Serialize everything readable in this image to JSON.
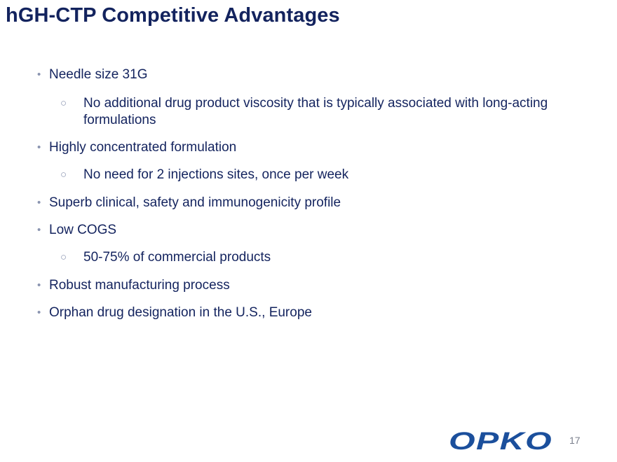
{
  "slide": {
    "title": "hGH-CTP Competitive Advantages",
    "page_number": "17"
  },
  "logo": {
    "text": "OPKO",
    "color": "#1b4f9c"
  },
  "bullets": [
    {
      "level": 1,
      "text": "Needle size 31G"
    },
    {
      "level": 2,
      "text": "No additional drug product viscosity that is typically associated with long-acting formulations"
    },
    {
      "level": 1,
      "text": "Highly concentrated formulation"
    },
    {
      "level": 2,
      "text": "No need for 2 injections sites, once per week"
    },
    {
      "level": 1,
      "text": "Superb clinical, safety and immunogenicity profile"
    },
    {
      "level": 1,
      "text": "Low COGS"
    },
    {
      "level": 2,
      "text": "50-75% of commercial products"
    },
    {
      "level": 1,
      "text": "Robust manufacturing process"
    },
    {
      "level": 1,
      "text": "Orphan drug designation in the U.S., Europe"
    }
  ],
  "colors": {
    "title": "#13235e",
    "body_text": "#13235e",
    "bullet_marker": "#8a94b0"
  }
}
